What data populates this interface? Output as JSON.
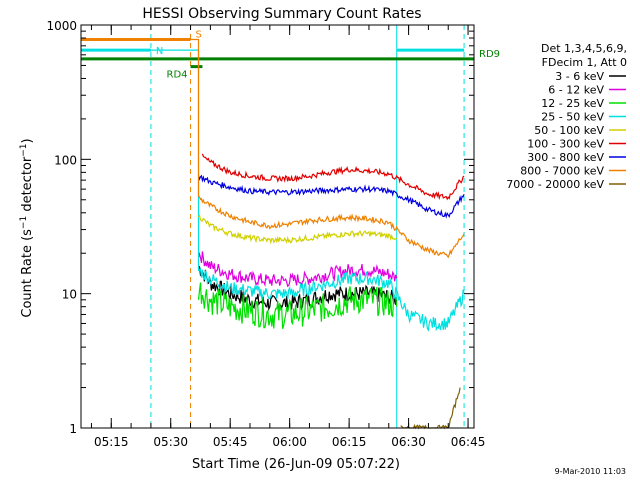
{
  "chart_data": {
    "type": "line",
    "title": "HESSI Observing Summary Count Rates",
    "xlabel": "Start Time (26-Jun-09 05:07:22)",
    "ylabel": "Count Rate (s⁻¹ detector⁻¹)",
    "ylabel_parts": {
      "main": "Count Rate (s",
      "sup1": "−1",
      "mid": " detector",
      "sup2": "−1",
      "end": ")"
    },
    "xlim": [
      "05:07:22",
      "06:46:30"
    ],
    "ylim": [
      1,
      1000
    ],
    "y_scale": "log",
    "x_ticks": [
      "05:15",
      "05:30",
      "05:45",
      "06:00",
      "06:15",
      "06:30",
      "06:45"
    ],
    "y_ticks": [
      "1",
      "10",
      "100",
      "1000"
    ],
    "legend": {
      "placement": "right",
      "header": [
        "Det 1,3,4,5,6,9,",
        "FDecim 1, Att 0"
      ]
    },
    "series": [
      {
        "name": "3 - 6 keV",
        "color": "#000000",
        "x": [
          "05:37",
          "05:40",
          "05:45",
          "05:50",
          "05:55",
          "06:00",
          "06:05",
          "06:10",
          "06:15",
          "06:20",
          "06:25",
          "06:27"
        ],
        "y": [
          16,
          12,
          10,
          9,
          8.5,
          8.5,
          9,
          10,
          10,
          10,
          9.5,
          9
        ]
      },
      {
        "name": "6 - 12 keV",
        "color": "#e000e0",
        "x": [
          "05:37",
          "05:40",
          "05:45",
          "05:50",
          "05:55",
          "06:00",
          "06:05",
          "06:10",
          "06:15",
          "06:20",
          "06:25",
          "06:27"
        ],
        "y": [
          20,
          16,
          14,
          13,
          12.5,
          12.5,
          13,
          14,
          15,
          15,
          14,
          13
        ]
      },
      {
        "name": "12 - 25 keV",
        "color": "#00e000",
        "x": [
          "05:37",
          "05:40",
          "05:45",
          "05:50",
          "05:55",
          "06:00",
          "06:05",
          "06:10",
          "06:15",
          "06:20",
          "06:25",
          "06:27"
        ],
        "y": [
          11,
          9,
          8,
          7.5,
          7,
          7,
          7.5,
          8,
          9,
          9,
          8.5,
          8
        ]
      },
      {
        "name": "25 - 50 keV",
        "color": "#00e0e0",
        "x": [
          "05:08",
          "05:20",
          "05:25",
          "05:37",
          "05:40",
          "05:45",
          "05:50",
          "05:55",
          "06:00",
          "06:05",
          "06:10",
          "06:15",
          "06:20",
          "06:25",
          "06:30",
          "06:35",
          "06:40",
          "06:44"
        ],
        "y": [
          650,
          650,
          650,
          15,
          13,
          11,
          10.5,
          10,
          10,
          11,
          12,
          13,
          13,
          12,
          7,
          6,
          6,
          10
        ]
      },
      {
        "name": "50 - 100 keV",
        "color": "#d0d000",
        "x": [
          "05:37",
          "05:40",
          "05:45",
          "05:50",
          "05:55",
          "06:00",
          "06:05",
          "06:10",
          "06:15",
          "06:20",
          "06:25",
          "06:27"
        ],
        "y": [
          38,
          32,
          28,
          26,
          25,
          25,
          26,
          27,
          28,
          28,
          27,
          26
        ]
      },
      {
        "name": "100 - 300 keV",
        "color": "#e00000",
        "x": [
          "05:38",
          "05:40",
          "05:45",
          "05:50",
          "05:55",
          "06:00",
          "06:05",
          "06:10",
          "06:15",
          "06:20",
          "06:25",
          "06:30",
          "06:35",
          "06:40",
          "06:44"
        ],
        "y": [
          105,
          95,
          80,
          75,
          72,
          72,
          75,
          80,
          84,
          82,
          78,
          65,
          55,
          52,
          75
        ]
      },
      {
        "name": "300 - 800 keV",
        "color": "#0000e0",
        "x": [
          "05:37",
          "05:40",
          "05:45",
          "05:50",
          "05:55",
          "06:00",
          "06:05",
          "06:10",
          "06:15",
          "06:20",
          "06:25",
          "06:30",
          "06:35",
          "06:40",
          "06:44"
        ],
        "y": [
          75,
          68,
          62,
          58,
          57,
          57,
          58,
          59,
          60,
          60,
          58,
          50,
          42,
          38,
          55
        ]
      },
      {
        "name": "800 - 7000 keV",
        "color": "#f08000",
        "x": [
          "05:08",
          "05:35",
          "05:37",
          "05:40",
          "05:45",
          "05:50",
          "05:55",
          "06:00",
          "06:05",
          "06:10",
          "06:15",
          "06:20",
          "06:25",
          "06:30",
          "06:35",
          "06:40",
          "06:44"
        ],
        "y": [
          780,
          780,
          52,
          45,
          38,
          34,
          32,
          33,
          35,
          36,
          37,
          36,
          34,
          25,
          21,
          19,
          28
        ]
      },
      {
        "name": "7000 - 20000 keV",
        "color": "#806000",
        "x": [
          "06:28",
          "06:35",
          "06:40",
          "06:43"
        ],
        "y": [
          1,
          1,
          1,
          2
        ]
      }
    ],
    "vertical_lines": [
      {
        "x": "05:25",
        "color": "#00e0e0",
        "dashed": true
      },
      {
        "x": "05:35",
        "color": "#f08000",
        "dashed": true
      },
      {
        "x": "06:27",
        "color": "#00e0e0",
        "dashed": false
      },
      {
        "x": "06:44",
        "color": "#00e0e0",
        "dashed": true
      }
    ],
    "flag_bars": [
      {
        "label": "S",
        "color": "#f08000",
        "segments": [
          [
            "05:07:22",
            "05:35"
          ]
        ],
        "y": 780
      },
      {
        "label": "N",
        "color": "#00e0e0",
        "segments": [
          [
            "05:07:22",
            "05:25"
          ],
          [
            "06:27",
            "06:44"
          ]
        ],
        "y": 650
      },
      {
        "label": "RD9",
        "color": "#008000",
        "segments": [
          [
            "05:07:22",
            "06:46:30"
          ]
        ],
        "y": 560
      },
      {
        "label": "RD4",
        "color": "#008000",
        "segments": [
          [
            "05:35",
            "05:38"
          ]
        ],
        "y": 490
      }
    ],
    "footer_timestamp": "9-Mar-2010 11:03"
  }
}
